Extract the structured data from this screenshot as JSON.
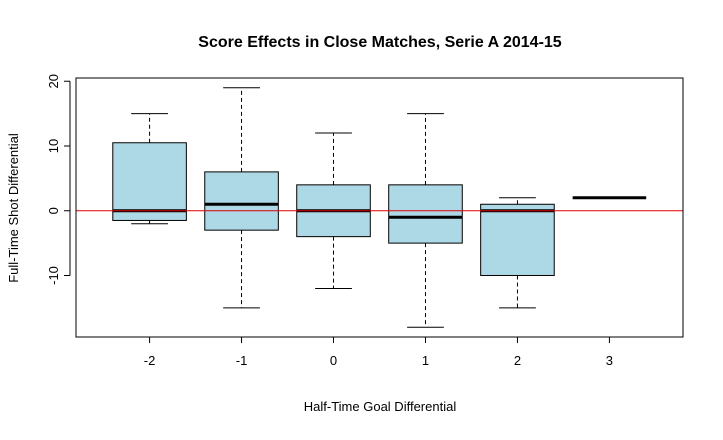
{
  "chart_data": {
    "type": "boxplot",
    "title": "Score Effects in Close Matches, Serie A 2014-15",
    "xlabel": "Half-Time Goal Differential",
    "ylabel": "Full-Time Shot Differential",
    "categories": [
      "-2",
      "-1",
      "0",
      "1",
      "2",
      "3"
    ],
    "boxes": [
      {
        "category": "-2",
        "whisker_low": -2,
        "q1": -1.5,
        "median": 0,
        "q3": 10.5,
        "whisker_high": 15
      },
      {
        "category": "-1",
        "whisker_low": -15,
        "q1": -3,
        "median": 1,
        "q3": 6,
        "whisker_high": 19
      },
      {
        "category": "0",
        "whisker_low": -12,
        "q1": -4,
        "median": 0,
        "q3": 4,
        "whisker_high": 12
      },
      {
        "category": "1",
        "whisker_low": -18,
        "q1": -5,
        "median": -1,
        "q3": 4,
        "whisker_high": 15
      },
      {
        "category": "2",
        "whisker_low": -15,
        "q1": -10,
        "median": 0,
        "q3": 1,
        "whisker_high": 2
      },
      {
        "category": "3",
        "whisker_low": 2,
        "q1": 2,
        "median": 2,
        "q3": 2,
        "whisker_high": 2
      }
    ],
    "yticks": [
      -10,
      0,
      10,
      20
    ],
    "ylim": [
      -19.5,
      20.5
    ],
    "reference_line": 0,
    "grid": false,
    "colors": {
      "box_fill": "#add8e6",
      "reference_line": "#e00000",
      "stroke": "#000000"
    }
  }
}
